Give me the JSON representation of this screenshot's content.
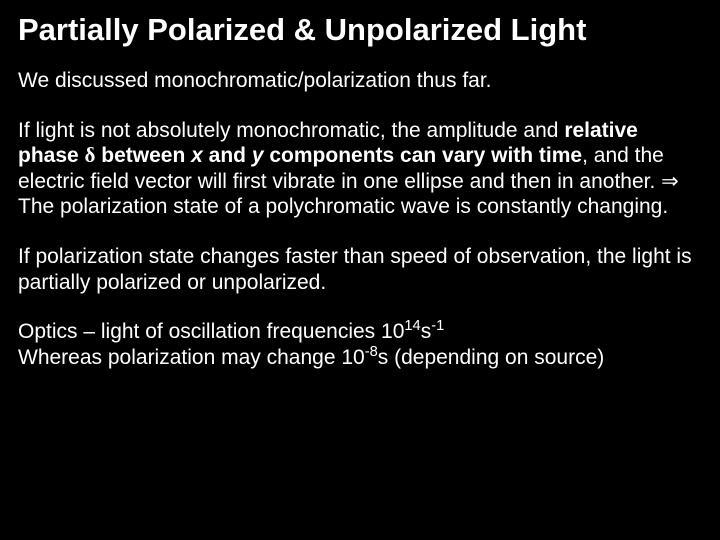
{
  "slide": {
    "background_color": "#000000",
    "text_color": "#ffffff",
    "title": "Partially Polarized & Unpolarized Light",
    "title_fontsize": 31,
    "body_fontsize": 21,
    "p1": "We discussed monochromatic/polarization thus far.",
    "p2a": "If light is not absolutely monochromatic, the amplitude and ",
    "p2b": "relative phase ",
    "p2_delta": "δ",
    "p2c": " between ",
    "p2_x": "x",
    "p2d": " and ",
    "p2_y": "y",
    "p2e": " components can vary with time",
    "p2f": ", and the electric field vector will first vibrate in one ellipse and then in another.  ",
    "p2_arrow": "⇒",
    "p2g": " The polarization state of a polychromatic wave is constantly changing.",
    "p3": "If polarization state changes faster than speed of observation, the light is partially polarized or unpolarized.",
    "p4a": "Optics – light of oscillation frequencies 10",
    "p4_exp1": "14",
    "p4b": "s",
    "p4_exp2": "-1",
    "p4c": "Whereas polarization may change 10",
    "p4_exp3": "-8",
    "p4d": "s (depending on source)"
  }
}
